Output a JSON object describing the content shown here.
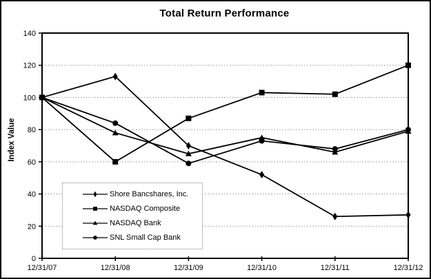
{
  "chart_data": {
    "type": "line",
    "title": "Total Return Performance",
    "ylabel": "Index Value",
    "xlabel": "",
    "categories": [
      "12/31/07",
      "12/31/08",
      "12/31/09",
      "12/31/10",
      "12/31/11",
      "12/31/12"
    ],
    "series": [
      {
        "name": "Shore Bancshares, Inc.",
        "marker": "diamond",
        "color": "#000000",
        "values": [
          100,
          113,
          70,
          52,
          26,
          27
        ]
      },
      {
        "name": "NASDAQ Composite",
        "marker": "square",
        "color": "#000000",
        "values": [
          100,
          60,
          87,
          103,
          102,
          120
        ]
      },
      {
        "name": "NASDAQ Bank",
        "marker": "triangle",
        "color": "#000000",
        "values": [
          100,
          78,
          65,
          75,
          66,
          79
        ]
      },
      {
        "name": "SNL Small Cap Bank",
        "marker": "circle",
        "color": "#000000",
        "values": [
          100,
          84,
          59,
          73,
          68,
          80
        ]
      }
    ],
    "ylim": [
      0,
      140
    ],
    "yticks": [
      0,
      20,
      40,
      60,
      80,
      100,
      120,
      140
    ],
    "grid": true,
    "grid_color": "#aaaaaa",
    "line_color": "#000000",
    "legend_position": "inside-bottom-left"
  }
}
